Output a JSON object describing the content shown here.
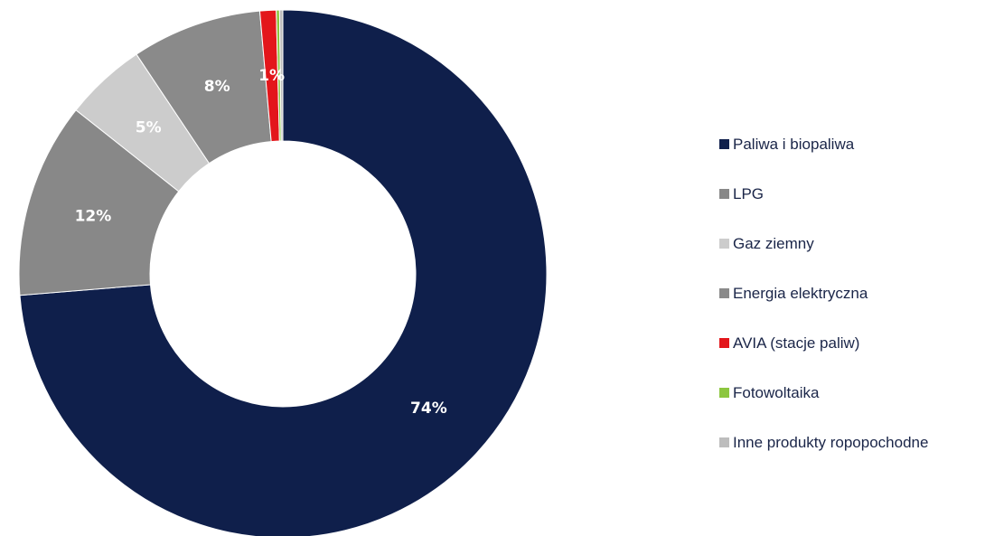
{
  "chart_data": {
    "type": "pie",
    "variant": "donut",
    "title": "",
    "unit": "%",
    "series": [
      {
        "name": "Paliwa i biopaliwa",
        "value": 74,
        "label": "74%",
        "color": "#0f1f4b"
      },
      {
        "name": "LPG",
        "value": 12,
        "label": "12%",
        "color": "#888888"
      },
      {
        "name": "Gaz ziemny",
        "value": 5,
        "label": "5%",
        "color": "#cccccc"
      },
      {
        "name": "Energia elektryczna",
        "value": 8,
        "label": "8%",
        "color": "#8a8a8a"
      },
      {
        "name": "AVIA (stacje paliw)",
        "value": 1,
        "label": "1%",
        "color": "#e3161b"
      },
      {
        "name": "Fotowoltaika",
        "value": 0.2,
        "label": "",
        "color": "#8cc63f"
      },
      {
        "name": "Inne produkty ropopochodne",
        "value": 0.2,
        "label": "",
        "color": "#bdbdbd"
      }
    ],
    "legend_position": "right"
  }
}
